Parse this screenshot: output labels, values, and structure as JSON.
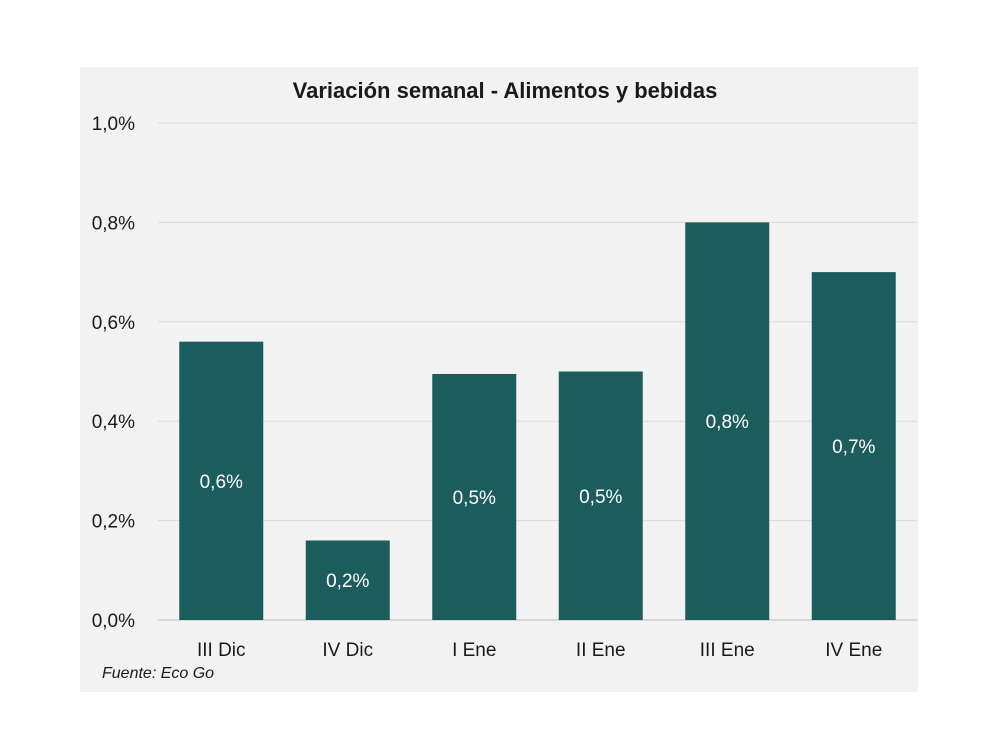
{
  "chart_data": {
    "type": "bar",
    "title": "Variación semanal - Alimentos y bebidas",
    "categories": [
      "III Dic",
      "IV Dic",
      "I Ene",
      "II Ene",
      "III Ene",
      "IV Ene"
    ],
    "values": [
      0.56,
      0.16,
      0.495,
      0.5,
      0.8,
      0.7
    ],
    "data_labels": [
      "0,6%",
      "0,2%",
      "0,5%",
      "0,5%",
      "0,8%",
      "0,7%"
    ],
    "y_ticks": [
      0.0,
      0.2,
      0.4,
      0.6,
      0.8,
      1.0
    ],
    "y_tick_labels": [
      "0,0%",
      "0,2%",
      "0,4%",
      "0,6%",
      "0,8%",
      "1,0%"
    ],
    "ylim": [
      0,
      1.0
    ],
    "grid": true,
    "legend": "none",
    "bar_color": "#1c5c5c",
    "source": "Fuente: Eco Go"
  }
}
